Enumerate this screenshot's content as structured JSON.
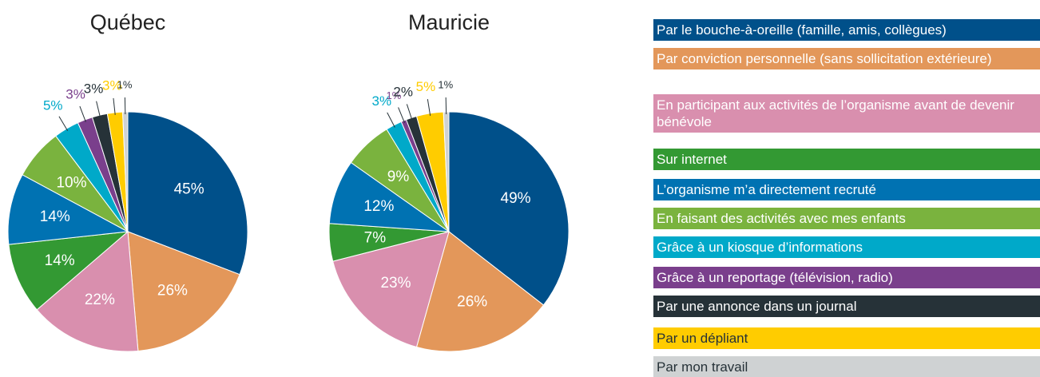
{
  "chart_data": [
    {
      "type": "pie",
      "title": "Québec",
      "values": [
        45,
        26,
        22,
        14,
        14,
        10,
        5,
        3,
        3,
        3,
        1
      ],
      "value_labels": [
        "45%",
        "26%",
        "22%",
        "14%",
        "14%",
        "10%",
        "5%",
        "3%",
        "3%",
        "3%",
        "1%"
      ]
    },
    {
      "type": "pie",
      "title": "Mauricie",
      "values": [
        49,
        26,
        23,
        7,
        12,
        9,
        3,
        1,
        2,
        5,
        1
      ],
      "value_labels": [
        "49%",
        "26%",
        "23%",
        "7%",
        "12%",
        "9%",
        "3%",
        "1%",
        "2%",
        "5%",
        "1%"
      ]
    }
  ],
  "legend": {
    "categories": [
      "Par le bouche-à-oreille (famille, amis, collègues)",
      "Par conviction personnelle (sans sollicitation extérieure)",
      "En participant aux activités de l’organisme avant de devenir bénévole",
      "Sur internet",
      "L’organisme m’a directement recruté",
      "En faisant des activités avec mes enfants",
      "Grâce à un kiosque d’informations",
      "Grâce à un reportage (télévision, radio)",
      "Par une annonce dans un journal",
      "Par un dépliant",
      "Par mon travail"
    ],
    "colors": [
      "#00508a",
      "#e3975a",
      "#d98fae",
      "#339933",
      "#0072b2",
      "#7ab33e",
      "#00a9c9",
      "#7a3f8c",
      "#263238",
      "#ffcc00",
      "#cfd2d3"
    ]
  }
}
